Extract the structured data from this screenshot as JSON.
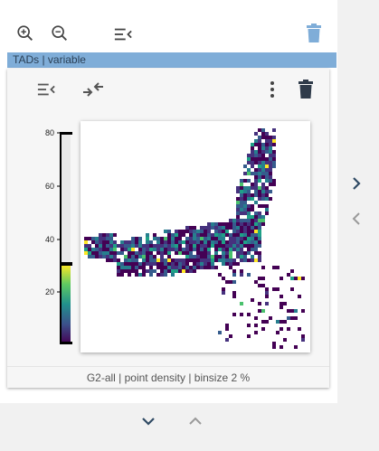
{
  "toolbar": {
    "zoom_in_icon": "magnify-plus-icon",
    "zoom_out_icon": "magnify-minus-icon",
    "collapse_icon": "menu-collapse-icon",
    "delete_icon": "trash-icon",
    "delete_color": "#7fadd8"
  },
  "tads_bar": {
    "label": "TADs | variable",
    "color": "#7fadd8"
  },
  "card": {
    "toolbar": {
      "collapse_icon": "menu-collapse-icon",
      "merge_icon": "arrows-merge-icon",
      "more_icon": "dots-vertical-icon",
      "delete_icon": "trash-icon"
    },
    "caption": "G2-all | point density | binsize 2 %"
  },
  "colorbar": {
    "ticks": [
      "80",
      "60",
      "40",
      "20"
    ],
    "colors": [
      "#440154",
      "#3b528b",
      "#21918c",
      "#5ec962",
      "#fde725"
    ]
  },
  "side_nav": {
    "next_icon": "chevron-right-icon",
    "prev_icon": "chevron-left-icon"
  },
  "bottom_nav": {
    "down_icon": "chevron-down-icon",
    "up_icon": "chevron-up-icon"
  }
}
